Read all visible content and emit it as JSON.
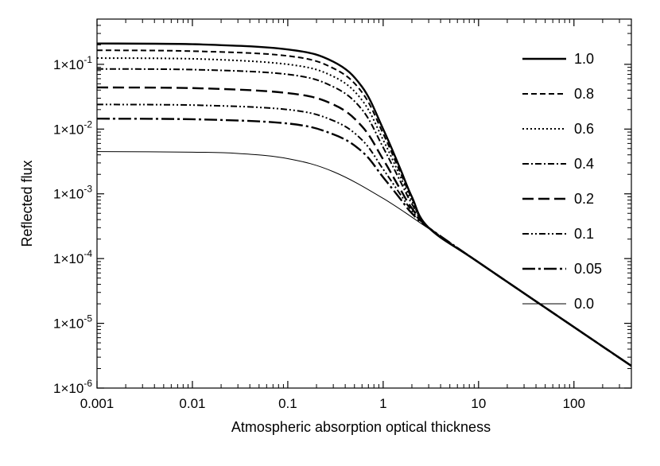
{
  "chart_data": {
    "type": "line",
    "title": "",
    "xlabel": "Atmospheric absorption optical thickness",
    "ylabel": "Reflected flux",
    "x_scale": "log",
    "y_scale": "log",
    "xlim": [
      0.001,
      400
    ],
    "ylim": [
      1e-06,
      0.5
    ],
    "x_ticks": [
      {
        "value": 0.001,
        "label": "0.001"
      },
      {
        "value": 0.01,
        "label": "0.01"
      },
      {
        "value": 0.1,
        "label": "0.1"
      },
      {
        "value": 1,
        "label": "1"
      },
      {
        "value": 10,
        "label": "10"
      },
      {
        "value": 100,
        "label": "100"
      }
    ],
    "y_ticks": [
      {
        "value": 0.1,
        "mantissa": "1×10",
        "exponent": "-1"
      },
      {
        "value": 0.01,
        "mantissa": "1×10",
        "exponent": "-2"
      },
      {
        "value": 0.001,
        "mantissa": "1×10",
        "exponent": "-3"
      },
      {
        "value": 0.0001,
        "mantissa": "1×10",
        "exponent": "-4"
      },
      {
        "value": 1e-05,
        "mantissa": "1×10",
        "exponent": "-5"
      },
      {
        "value": 1e-06,
        "mantissa": "1×10",
        "exponent": "-6"
      }
    ],
    "legend_position": "right",
    "series": [
      {
        "name": "1.0",
        "style": "solid-thick",
        "x": [
          0.001,
          0.01,
          0.1,
          0.3,
          0.6,
          1,
          1.5,
          2,
          3,
          10,
          100,
          400
        ],
        "values": [
          0.21,
          0.205,
          0.17,
          0.11,
          0.045,
          0.01,
          0.0025,
          0.0009,
          0.0003,
          8.75e-05,
          8.75e-06,
          2.2e-06
        ]
      },
      {
        "name": "0.8",
        "style": "dash",
        "x": [
          0.001,
          0.01,
          0.1,
          0.3,
          0.6,
          1,
          1.5,
          2,
          3,
          10,
          100,
          400
        ],
        "values": [
          0.165,
          0.16,
          0.135,
          0.087,
          0.037,
          0.0085,
          0.0022,
          0.00085,
          0.0003,
          8.75e-05,
          8.75e-06,
          2.2e-06
        ]
      },
      {
        "name": "0.6",
        "style": "dot",
        "x": [
          0.001,
          0.01,
          0.1,
          0.3,
          0.6,
          1,
          1.5,
          2,
          3,
          10,
          100,
          400
        ],
        "values": [
          0.125,
          0.122,
          0.1,
          0.065,
          0.028,
          0.0068,
          0.0019,
          0.00078,
          0.0003,
          8.75e-05,
          8.75e-06,
          2.2e-06
        ]
      },
      {
        "name": "0.4",
        "style": "dash-dot",
        "x": [
          0.001,
          0.01,
          0.1,
          0.3,
          0.6,
          1,
          1.5,
          2,
          3,
          10,
          100,
          400
        ],
        "values": [
          0.085,
          0.083,
          0.07,
          0.045,
          0.02,
          0.0052,
          0.0016,
          0.0007,
          0.0003,
          8.75e-05,
          8.75e-06,
          2.2e-06
        ]
      },
      {
        "name": "0.2",
        "style": "long-dash",
        "x": [
          0.001,
          0.01,
          0.1,
          0.3,
          0.6,
          1,
          1.5,
          2,
          3,
          10,
          100,
          400
        ],
        "values": [
          0.044,
          0.043,
          0.036,
          0.024,
          0.011,
          0.0034,
          0.0012,
          0.0006,
          0.0003,
          8.75e-05,
          8.75e-06,
          2.2e-06
        ]
      },
      {
        "name": "0.1",
        "style": "dash-dot-dot",
        "x": [
          0.001,
          0.01,
          0.1,
          0.3,
          0.6,
          1,
          1.5,
          2,
          3,
          10,
          100,
          400
        ],
        "values": [
          0.024,
          0.0235,
          0.02,
          0.0135,
          0.0068,
          0.0024,
          0.001,
          0.00055,
          0.0003,
          8.75e-05,
          8.75e-06,
          2.2e-06
        ]
      },
      {
        "name": "0.05",
        "style": "long-dash-dot",
        "x": [
          0.001,
          0.01,
          0.1,
          0.3,
          0.6,
          1,
          1.5,
          2,
          3,
          10,
          100,
          400
        ],
        "values": [
          0.0145,
          0.0142,
          0.0122,
          0.0083,
          0.0045,
          0.0018,
          0.00085,
          0.0005,
          0.0003,
          8.75e-05,
          8.75e-06,
          2.2e-06
        ]
      },
      {
        "name": "0.0",
        "style": "solid-thin",
        "x": [
          0.001,
          0.01,
          0.03,
          0.1,
          0.3,
          1,
          3,
          10,
          100,
          400
        ],
        "values": [
          0.0045,
          0.0044,
          0.0042,
          0.0035,
          0.0022,
          0.00085,
          0.00029,
          8.75e-05,
          8.75e-06,
          2.2e-06
        ]
      }
    ]
  },
  "styles": {
    "axis_color": "#000000",
    "line_color": "#000000",
    "background": "#ffffff"
  }
}
